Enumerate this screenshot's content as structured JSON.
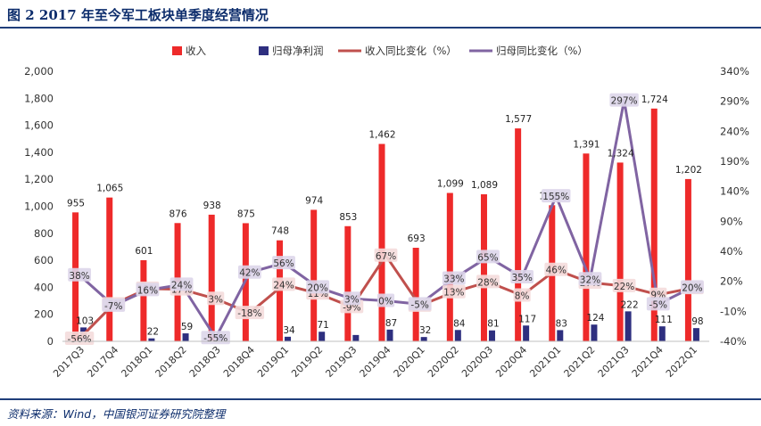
{
  "header": {
    "title": "图 2   2017 年至今军工板块单季度经营情况"
  },
  "footer": {
    "source": "资料来源：Wind，中国银河证券研究院整理"
  },
  "chart_data": {
    "type": "bar",
    "categories": [
      "2017Q3",
      "2017Q4",
      "2018Q1",
      "2018Q2",
      "2018Q3",
      "2018Q4",
      "2019Q1",
      "2019Q2",
      "2019Q3",
      "2019Q4",
      "2020Q1",
      "2020Q2",
      "2020Q3",
      "2020Q4",
      "2021Q1",
      "2021Q2",
      "2021Q3",
      "2021Q4",
      "2022Q1"
    ],
    "series": [
      {
        "name": "收入",
        "kind": "bar",
        "axis": "left",
        "color": "#ee2a2a",
        "values": [
          955,
          1065,
          601,
          876,
          938,
          875,
          748,
          974,
          853,
          1462,
          693,
          1099,
          1089,
          1577,
          1008,
          1391,
          1324,
          1724,
          1202
        ],
        "labels": [
          "955",
          "1,065",
          "601",
          "876",
          "938",
          "875",
          "748",
          "974",
          "853",
          "1,462",
          "693",
          "1,099",
          "1,089",
          "1,577",
          "1,008",
          "1,391",
          "1,324",
          "1,724",
          "1,202"
        ]
      },
      {
        "name": "归母净利润",
        "kind": "bar",
        "axis": "left",
        "color": "#2e2f7f",
        "values": [
          103,
          null,
          22,
          59,
          48,
          null,
          34,
          71,
          47,
          87,
          32,
          84,
          81,
          117,
          83,
          124,
          222,
          111,
          98
        ],
        "labels": [
          "103",
          "",
          "22",
          "59",
          "",
          "",
          "34",
          "71",
          "",
          "87",
          "32",
          "84",
          "81",
          "117",
          "83",
          "124",
          "222",
          "111",
          "98"
        ]
      },
      {
        "name": "收入同比变化（%）",
        "kind": "line",
        "axis": "right",
        "color": "#c0504d",
        "values": [
          -56,
          -5,
          18,
          17,
          3,
          -18,
          24,
          11,
          -9,
          67,
          -7,
          13,
          28,
          8,
          46,
          27,
          22,
          9,
          19
        ],
        "labels": [
          "-56%",
          "-5%",
          "18%",
          "17%",
          "3%",
          "-18%",
          "24%",
          "11%",
          "-9%",
          "67%",
          "-7%",
          "13%",
          "28%",
          "8%",
          "46%",
          "27%",
          "22%",
          "9%",
          "19%"
        ]
      },
      {
        "name": "归母同比变化（%）",
        "kind": "line",
        "axis": "right",
        "color": "#8064a2",
        "values": [
          38,
          -7,
          16,
          24,
          -55,
          42,
          56,
          20,
          3,
          0,
          -5,
          33,
          65,
          35,
          155,
          32,
          297,
          -5,
          20
        ],
        "labels": [
          "38%",
          "-7%",
          "16%",
          "24%",
          "-55%",
          "42%",
          "56%",
          "20%",
          "3%",
          "0%",
          "-5%",
          "33%",
          "65%",
          "35%",
          "155%",
          "32%",
          "297%",
          "-5%",
          "20%"
        ]
      }
    ],
    "y_left": {
      "ylim": [
        0,
        2000
      ],
      "ticks": [
        "0",
        "200",
        "400",
        "600",
        "800",
        "1,000",
        "1,200",
        "1,400",
        "1,600",
        "1,800",
        "2,000"
      ]
    },
    "y_right": {
      "ylim": [
        -60,
        340
      ],
      "ticks": [
        "-40%",
        "-10%",
        "20%",
        "40%",
        "90%",
        "140%",
        "190%",
        "240%",
        "290%",
        "340%"
      ]
    },
    "legend_position": "top",
    "grid": false
  }
}
